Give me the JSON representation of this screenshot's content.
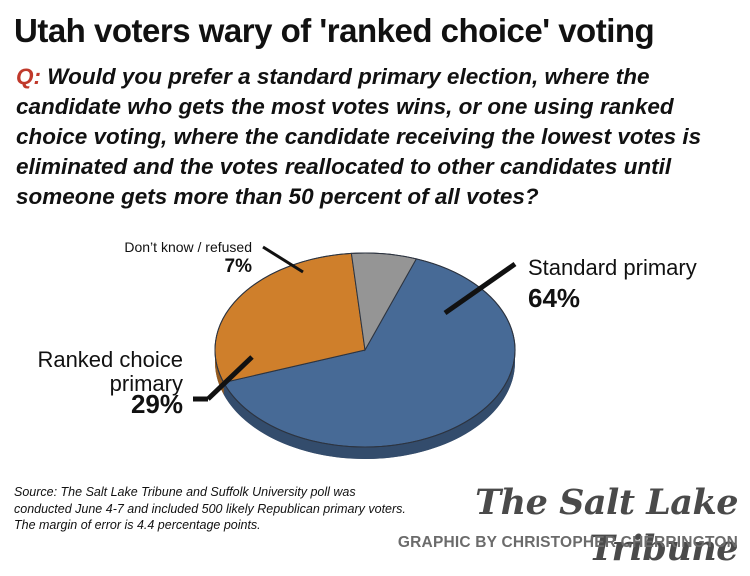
{
  "title": "Utah voters wary of 'ranked choice' voting",
  "question": {
    "prefix": "Q:",
    "text": "Would you prefer a standard primary election, where the candidate who gets the most votes wins, or one using ranked choice voting, where the candidate receiving the lowest votes is eliminated and the votes reallocated to other candidates until someone gets more than 50 percent of all votes?"
  },
  "chart_data": {
    "type": "pie",
    "title": "",
    "slices": [
      {
        "name": "standard",
        "label_lines": [
          "Standard primary"
        ],
        "value": 64,
        "value_label": "64%",
        "color": "#476a96"
      },
      {
        "name": "ranked",
        "label_lines": [
          "Ranked choice",
          "primary"
        ],
        "value": 29,
        "value_label": "29%",
        "color": "#cf7f2b"
      },
      {
        "name": "dontknow",
        "label_lines": [
          "Don’t know / refused"
        ],
        "value": 7,
        "value_label": "7%",
        "color": "#959595"
      }
    ]
  },
  "source": "Source: The Salt Lake Tribune and Suffolk University poll was conducted June 4-7 and included 500 likely Republican primary voters. The margin of error is 4.4 percentage points.",
  "masthead": "The Salt Lake Tribune",
  "credit": "GRAPHIC BY CHRISTOPHER CHERRINGTON"
}
